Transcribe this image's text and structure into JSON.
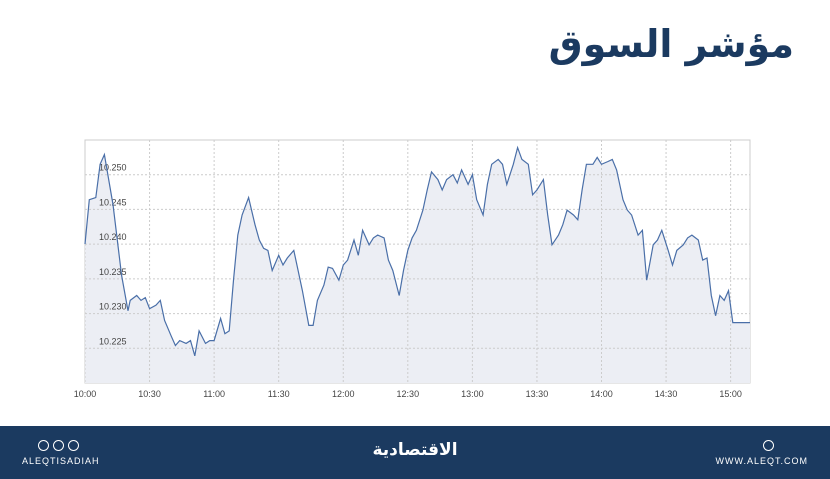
{
  "chart_data": {
    "type": "line",
    "title": "مؤشر السوق",
    "x": [
      "10:00",
      "10:02",
      "10:05",
      "10:07",
      "10:09",
      "10:11",
      "10:13",
      "10:15",
      "10:17",
      "10:20",
      "10:21",
      "10:24",
      "10:26",
      "10:28",
      "10:30",
      "10:33",
      "10:35",
      "10:37",
      "10:40",
      "10:42",
      "10:44",
      "10:47",
      "10:49",
      "10:51",
      "10:53",
      "10:56",
      "10:58",
      "11:00",
      "11:03",
      "11:05",
      "11:07",
      "11:09",
      "11:11",
      "11:13",
      "11:16",
      "11:19",
      "11:21",
      "11:23",
      "11:25",
      "11:27",
      "11:30",
      "11:32",
      "11:34",
      "11:37",
      "11:39",
      "11:41",
      "11:44",
      "11:46",
      "11:48",
      "11:51",
      "11:53",
      "11:55",
      "11:58",
      "12:00",
      "12:02",
      "12:05",
      "12:07",
      "12:09",
      "12:12",
      "12:14",
      "12:16",
      "12:19",
      "12:21",
      "12:23",
      "12:26",
      "12:28",
      "12:30",
      "12:32",
      "12:34",
      "12:37",
      "12:39",
      "12:41",
      "12:44",
      "12:46",
      "12:48",
      "12:51",
      "12:53",
      "12:55",
      "12:58",
      "13:00",
      "13:02",
      "13:05",
      "13:07",
      "13:09",
      "13:12",
      "13:14",
      "13:16",
      "13:19",
      "13:21",
      "13:23",
      "13:26",
      "13:28",
      "13:30",
      "13:33",
      "13:35",
      "13:37",
      "13:40",
      "13:42",
      "13:44",
      "13:47",
      "13:49",
      "13:51",
      "13:53",
      "13:56",
      "13:58",
      "14:00",
      "14:03",
      "14:05",
      "14:07",
      "14:10",
      "14:12",
      "14:14",
      "14:17",
      "14:19",
      "14:21",
      "14:24",
      "14:26",
      "14:28",
      "14:31",
      "14:33",
      "14:35",
      "14:38",
      "14:40",
      "14:42",
      "14:45",
      "14:47",
      "14:49",
      "14:51",
      "14:53",
      "14:55",
      "14:57",
      "14:59",
      "15:01",
      "15:05",
      "15:09"
    ],
    "series": [
      {
        "color": "#4a6fa8",
        "fill": "#eceef4",
        "values": [
          10.24,
          10.2464,
          10.2467,
          10.2515,
          10.2529,
          10.2493,
          10.2457,
          10.2406,
          10.2355,
          10.2304,
          10.2319,
          10.2326,
          10.2319,
          10.2323,
          10.2307,
          10.2312,
          10.2319,
          10.229,
          10.2268,
          10.2254,
          10.2261,
          10.2257,
          10.2261,
          10.2239,
          10.2275,
          10.2257,
          10.2261,
          10.2261,
          10.2293,
          10.2271,
          10.2275,
          10.2348,
          10.2413,
          10.2442,
          10.2467,
          10.2428,
          10.2406,
          10.2394,
          10.2391,
          10.2362,
          10.2384,
          10.237,
          10.238,
          10.2391,
          10.2362,
          10.2333,
          10.2283,
          10.2283,
          10.2319,
          10.2341,
          10.2367,
          10.2365,
          10.2348,
          10.237,
          10.2377,
          10.2406,
          10.2384,
          10.242,
          10.2399,
          10.2409,
          10.2413,
          10.2409,
          10.2377,
          10.2362,
          10.2326,
          10.2362,
          10.2391,
          10.2409,
          10.242,
          10.2449,
          10.2478,
          10.2504,
          10.2493,
          10.2478,
          10.2493,
          10.25,
          10.2488,
          10.2507,
          10.2486,
          10.25,
          10.2464,
          10.2442,
          10.2486,
          10.2515,
          10.2522,
          10.2515,
          10.2486,
          10.2515,
          10.2539,
          10.2522,
          10.2515,
          10.2471,
          10.2478,
          10.2493,
          10.2442,
          10.2399,
          10.2413,
          10.2428,
          10.2449,
          10.2442,
          10.2435,
          10.2478,
          10.2515,
          10.2515,
          10.2525,
          10.2515,
          10.2519,
          10.2522,
          10.2507,
          10.2464,
          10.2449,
          10.2442,
          10.2413,
          10.242,
          10.2348,
          10.2399,
          10.2406,
          10.242,
          10.2391,
          10.237,
          10.2391,
          10.2399,
          10.2409,
          10.2413,
          10.2406,
          10.2377,
          10.238,
          10.2326,
          10.2297,
          10.2326,
          10.2319,
          10.2333,
          10.2287,
          10.2287,
          10.2287
        ]
      }
    ],
    "xlim": [
      "10:00",
      "15:09"
    ],
    "xticks": [
      "10:00",
      "10:30",
      "11:00",
      "11:30",
      "12:00",
      "12:30",
      "13:00",
      "13:30",
      "14:00",
      "14:30",
      "15:00"
    ],
    "ylim": [
      10.22,
      10.255
    ],
    "yticks": [
      10.225,
      {
        "value": 10.23,
        "label": "10.230"
      },
      10.235,
      {
        "value": 10.24,
        "label": "10.240"
      },
      10.245,
      {
        "value": 10.25,
        "label": "10.250"
      }
    ],
    "grid": true
  },
  "footer": {
    "left": "ALEQTISADIAH",
    "center": "الاقتصادية",
    "right": "WWW.ALEQT.COM"
  }
}
